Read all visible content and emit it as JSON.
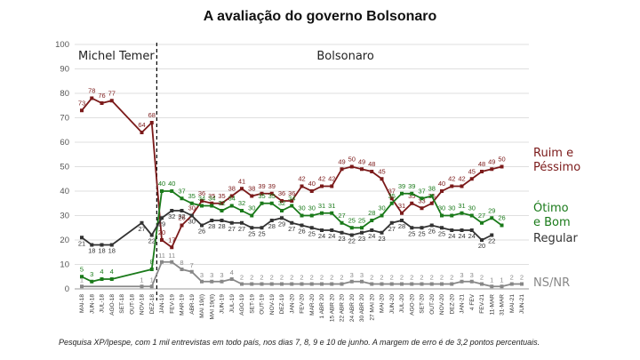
{
  "chart_data": {
    "type": "line",
    "title": "A avaliação do governo Bolsonaro",
    "note": "Pesquisa XP/Ipespe, com 1 mil entrevistas em todo país, nos dias 7, 8, 9 e 10 de junho. A margem de erro é de 3,2 pontos percentuais.",
    "periods": [
      "Michel Temer",
      "Bolsonaro"
    ],
    "ylim": [
      0,
      100
    ],
    "yticks": [
      0,
      10,
      20,
      30,
      40,
      50,
      60,
      70,
      80,
      90,
      100
    ],
    "grid": true,
    "categories": [
      "MAI-18",
      "JUN-18",
      "JUL-18",
      "AGO-18",
      "SET-18",
      "OUT-18",
      "NOV-18",
      "DEZ-18",
      "JAN-19",
      "FEV-19",
      "MAR-19",
      "ABR-19",
      "MAI 19(I)",
      "MAI 19(II)",
      "JUN-19",
      "JUL-19",
      "AGO-19",
      "SET-19",
      "OUT-19",
      "NOV-19",
      "DEZ-19",
      "JAN-20",
      "FEV-20",
      "MAR-20",
      "1 ABR 20",
      "15 ABR 20",
      "22 ABR 20",
      "24 ABR 20",
      "30 ABR 20",
      "27 MAI 20",
      "MAI-20",
      "JUN-20",
      "JUL-20",
      "AGO-20",
      "SET-20",
      "OUT-20",
      "NOV-20",
      "DEZ-20",
      "JAN-21",
      "4 FEV",
      "FEV-21",
      "11-MAR",
      "31-MAR",
      "MAI-21",
      "JUN-21"
    ],
    "series": [
      {
        "name": "Ruim e Péssimo",
        "color": "#7b1a1a",
        "values": [
          73,
          78,
          76,
          77,
          null,
          null,
          64,
          68,
          20,
          17,
          26,
          30,
          36,
          35,
          35,
          38,
          41,
          38,
          39,
          39,
          36,
          36,
          42,
          40,
          42,
          42,
          49,
          50,
          49,
          48,
          45,
          37,
          31,
          35,
          33,
          35,
          40,
          42,
          42,
          45,
          48,
          49,
          50,
          null,
          null
        ]
      },
      {
        "name": "Ótimo e Bom",
        "color": "#1a7a1a",
        "values": [
          5,
          3,
          4,
          4,
          null,
          null,
          null,
          8,
          40,
          40,
          37,
          35,
          34,
          34,
          32,
          34,
          32,
          30,
          35,
          35,
          32,
          34,
          30,
          30,
          31,
          31,
          27,
          25,
          25,
          28,
          30,
          35,
          39,
          39,
          37,
          38,
          30,
          30,
          31,
          30,
          27,
          29,
          26,
          null,
          null
        ]
      },
      {
        "name": "Regular",
        "color": "#333333",
        "values": [
          21,
          18,
          18,
          18,
          null,
          null,
          27,
          22,
          29,
          32,
          32,
          30,
          26,
          28,
          28,
          27,
          27,
          25,
          25,
          28,
          29,
          27,
          26,
          25,
          24,
          24,
          23,
          22,
          23,
          24,
          23,
          27,
          28,
          25,
          25,
          26,
          25,
          24,
          24,
          24,
          20,
          22,
          null,
          null,
          null
        ]
      },
      {
        "name": "NS/NR",
        "color": "#888888",
        "values": [
          1,
          null,
          null,
          null,
          null,
          null,
          1,
          1,
          11,
          11,
          8,
          7,
          3,
          3,
          3,
          4,
          2,
          2,
          2,
          2,
          2,
          2,
          2,
          2,
          2,
          2,
          2,
          3,
          3,
          2,
          2,
          2,
          2,
          2,
          2,
          2,
          2,
          2,
          3,
          3,
          2,
          1,
          1,
          2,
          2
        ]
      }
    ],
    "temer_last_index": 7
  }
}
